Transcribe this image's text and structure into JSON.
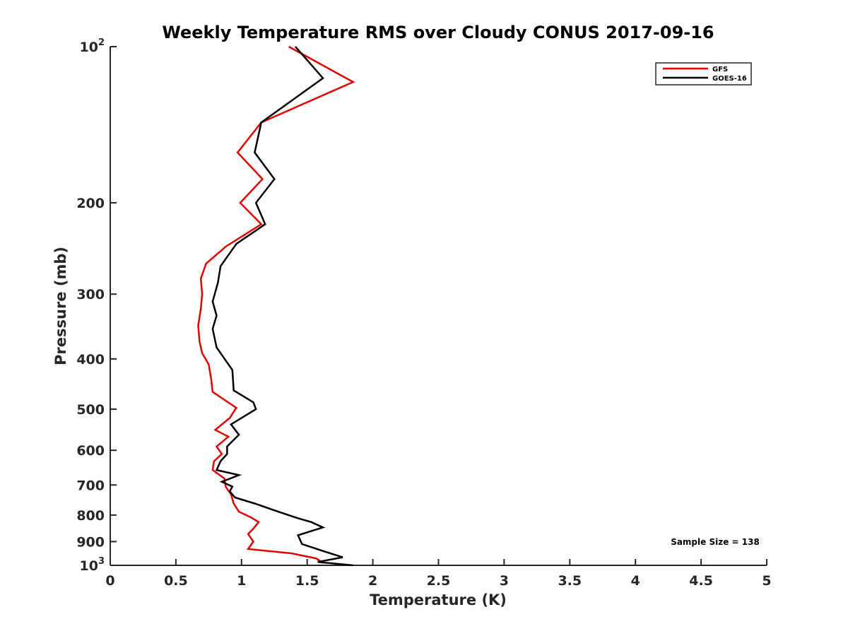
{
  "chart_data": {
    "type": "line",
    "title": "Weekly Temperature RMS over Cloudy CONUS 2017-09-16",
    "xlabel": "Temperature (K)",
    "ylabel": "Pressure (mb)",
    "xlim": [
      0,
      5
    ],
    "ylim": [
      100,
      1000
    ],
    "y_scale": "log",
    "y_reversed": true,
    "x_ticks": [
      0,
      0.5,
      1,
      1.5,
      2,
      2.5,
      3,
      3.5,
      4,
      4.5,
      5
    ],
    "x_tick_labels": [
      "0",
      "0.5",
      "1",
      "1.5",
      "2",
      "2.5",
      "3",
      "3.5",
      "4",
      "4.5",
      "5"
    ],
    "y_ticks": [
      {
        "value": 100,
        "base": "10",
        "exp": "2"
      },
      {
        "value": 200,
        "label": "200"
      },
      {
        "value": 300,
        "label": "300"
      },
      {
        "value": 400,
        "label": "400"
      },
      {
        "value": 500,
        "label": "500"
      },
      {
        "value": 600,
        "label": "600"
      },
      {
        "value": 700,
        "label": "700"
      },
      {
        "value": 800,
        "label": "800"
      },
      {
        "value": 900,
        "label": "900"
      },
      {
        "value": 1000,
        "base": "10",
        "exp": "3"
      }
    ],
    "grid": false,
    "legend_position": "top-right",
    "annotation": "Sample Size = 138",
    "series": [
      {
        "name": "GFS",
        "color": "#e00000",
        "points": [
          [
            1.36,
            100
          ],
          [
            1.85,
            117
          ],
          [
            1.15,
            140
          ],
          [
            0.97,
            160
          ],
          [
            1.16,
            180
          ],
          [
            0.99,
            200
          ],
          [
            1.15,
            220
          ],
          [
            0.88,
            243
          ],
          [
            0.73,
            262
          ],
          [
            0.69,
            280
          ],
          [
            0.7,
            300
          ],
          [
            0.69,
            320
          ],
          [
            0.67,
            345
          ],
          [
            0.68,
            370
          ],
          [
            0.7,
            390
          ],
          [
            0.75,
            410
          ],
          [
            0.77,
            440
          ],
          [
            0.78,
            463
          ],
          [
            0.96,
            497
          ],
          [
            0.91,
            520
          ],
          [
            0.8,
            548
          ],
          [
            0.9,
            565
          ],
          [
            0.81,
            590
          ],
          [
            0.85,
            610
          ],
          [
            0.79,
            630
          ],
          [
            0.78,
            655
          ],
          [
            0.87,
            680
          ],
          [
            0.88,
            706
          ],
          [
            0.92,
            730
          ],
          [
            0.94,
            760
          ],
          [
            0.98,
            788
          ],
          [
            1.07,
            808
          ],
          [
            1.13,
            825
          ],
          [
            1.09,
            850
          ],
          [
            1.05,
            870
          ],
          [
            1.09,
            900
          ],
          [
            1.05,
            930
          ],
          [
            1.38,
            948
          ],
          [
            1.57,
            970
          ],
          [
            1.62,
            990
          ]
        ]
      },
      {
        "name": "GOES-16",
        "color": "#000000",
        "points": [
          [
            1.41,
            100
          ],
          [
            1.62,
            115
          ],
          [
            1.15,
            140
          ],
          [
            1.1,
            160
          ],
          [
            1.25,
            180
          ],
          [
            1.11,
            200
          ],
          [
            1.18,
            220
          ],
          [
            0.96,
            240
          ],
          [
            0.84,
            265
          ],
          [
            0.82,
            285
          ],
          [
            0.78,
            310
          ],
          [
            0.81,
            330
          ],
          [
            0.78,
            350
          ],
          [
            0.81,
            380
          ],
          [
            0.93,
            420
          ],
          [
            0.94,
            460
          ],
          [
            1.09,
            485
          ],
          [
            1.11,
            500
          ],
          [
            0.92,
            535
          ],
          [
            0.98,
            560
          ],
          [
            0.89,
            590
          ],
          [
            0.89,
            610
          ],
          [
            0.84,
            630
          ],
          [
            0.81,
            655
          ],
          [
            0.98,
            670
          ],
          [
            0.85,
            690
          ],
          [
            0.93,
            705
          ],
          [
            0.91,
            720
          ],
          [
            0.95,
            740
          ],
          [
            1.1,
            760
          ],
          [
            1.26,
            785
          ],
          [
            1.42,
            810
          ],
          [
            1.53,
            825
          ],
          [
            1.62,
            845
          ],
          [
            1.43,
            875
          ],
          [
            1.46,
            910
          ],
          [
            1.63,
            940
          ],
          [
            1.77,
            965
          ],
          [
            1.58,
            985
          ],
          [
            1.85,
            1000
          ]
        ]
      }
    ]
  }
}
